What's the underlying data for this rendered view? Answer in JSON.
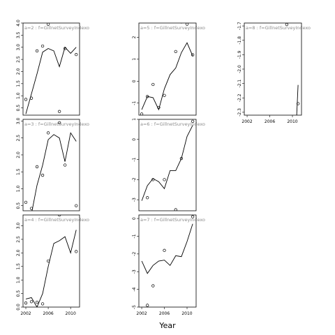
{
  "chart_data": {
    "type": "line",
    "xlabel": "Year",
    "panels": [
      {
        "label": "a=2  :  f=GillnetSurveyIndexo",
        "ylim": [
          0.2,
          4.0
        ],
        "yticks": [
          "0.5",
          "1.0",
          "1.5",
          "2.0",
          "2.5",
          "3.0",
          "3.5",
          "4.0"
        ],
        "xticks": [],
        "line": {
          "x": [
            2002,
            2004,
            2005,
            2006,
            2007,
            2008,
            2009,
            2010,
            2011
          ],
          "y": [
            0.25,
            1.9,
            2.8,
            2.95,
            2.85,
            2.2,
            3.0,
            2.75,
            3.0
          ]
        },
        "points": {
          "x": [
            2002,
            2003,
            2004,
            2005,
            2006,
            2008,
            2009,
            2011
          ],
          "y": [
            0.85,
            0.9,
            2.85,
            3.05,
            3.95,
            0.35,
            2.95,
            2.7
          ]
        }
      },
      {
        "label": "a=3  :  f=GillnetSurveyIndexo",
        "ylim": [
          0.35,
          3.05
        ],
        "yticks": [
          "0.5",
          "1.0",
          "1.5",
          "2.0",
          "2.5",
          "3.0"
        ],
        "xticks": [],
        "line": {
          "x": [
            2002,
            2003,
            2004,
            2005,
            2006,
            2007,
            2008,
            2009,
            2010,
            2011
          ],
          "y": [
            0.2,
            0.25,
            1.1,
            1.7,
            2.45,
            2.6,
            2.5,
            1.8,
            2.65,
            2.4
          ]
        },
        "points": {
          "x": [
            2002,
            2003,
            2004,
            2005,
            2006,
            2008,
            2009,
            2011
          ],
          "y": [
            0.6,
            0.42,
            1.65,
            1.4,
            2.65,
            2.95,
            1.7,
            0.5
          ]
        }
      },
      {
        "label": "a=4  :  f=GillnetSurveyIndexo",
        "ylim": [
          0.0,
          3.4
        ],
        "yticks": [
          "0.0",
          "0.5",
          "1.0",
          "1.5",
          "2.0",
          "2.5",
          "3.0"
        ],
        "xticks": [
          "2002",
          "2006",
          "2010"
        ],
        "line": {
          "x": [
            2002,
            2003,
            2004,
            2005,
            2006,
            2007,
            2008,
            2009,
            2010,
            2011
          ],
          "y": [
            0.3,
            0.35,
            0.0,
            0.5,
            1.5,
            2.35,
            2.45,
            2.6,
            2.0,
            2.85
          ]
        },
        "points": {
          "x": [
            2002,
            2003,
            2004,
            2005,
            2006,
            2008,
            2009,
            2011
          ],
          "y": [
            0.15,
            0.2,
            0.18,
            0.12,
            1.7,
            3.4,
            3.55,
            2.05
          ]
        }
      },
      {
        "label": "a=5  :  f=GillnetSurveyIndexo",
        "ylim": [
          -1.55,
          2.65
        ],
        "yticks": [
          "-1",
          "0",
          "1",
          "2"
        ],
        "xticks": [],
        "line": {
          "x": [
            2002,
            2003,
            2004,
            2005,
            2006,
            2007,
            2008,
            2009,
            2010,
            2011
          ],
          "y": [
            -1.3,
            -0.7,
            -0.75,
            -1.3,
            -0.35,
            0.3,
            0.6,
            1.3,
            1.75,
            1.15
          ]
        },
        "points": {
          "x": [
            2002,
            2003,
            2004,
            2005,
            2006,
            2008,
            2009,
            2010,
            2011
          ],
          "y": [
            -1.5,
            -0.7,
            -0.15,
            -1.2,
            -0.65,
            1.35,
            2.7,
            2.6,
            1.2
          ]
        }
      },
      {
        "label": "a=6  :  f=GillnetSurveyIndexo",
        "ylim": [
          -3.55,
          1.0
        ],
        "yticks": [
          "-3",
          "-2",
          "-1",
          "0",
          "1"
        ],
        "xticks": [],
        "line": {
          "x": [
            2002,
            2003,
            2004,
            2005,
            2006,
            2007,
            2008,
            2009,
            2010,
            2011
          ],
          "y": [
            -3.05,
            -2.3,
            -1.95,
            -2.1,
            -2.45,
            -1.55,
            -1.55,
            -0.95,
            0.15,
            0.7
          ]
        },
        "points": {
          "x": [
            2003,
            2004,
            2006,
            2008,
            2009,
            2011
          ],
          "y": [
            -2.9,
            -2.0,
            -2.0,
            -3.5,
            -0.95,
            0.9
          ]
        }
      },
      {
        "label": "a=7  :  f=GillnetSurveyIndexo",
        "ylim": [
          -5.0,
          0.2
        ],
        "yticks": [
          "-5",
          "-4",
          "-3",
          "-2",
          "-1",
          "0"
        ],
        "xticks": [
          "2002",
          "2006",
          "2010"
        ],
        "line": {
          "x": [
            2002,
            2003,
            2004,
            2005,
            2006,
            2007,
            2008,
            2009,
            2010,
            2011
          ],
          "y": [
            -2.4,
            -3.1,
            -2.65,
            -2.4,
            -2.35,
            -2.65,
            -2.1,
            -2.15,
            -1.3,
            -0.3
          ]
        },
        "points": {
          "x": [
            2003,
            2004,
            2006,
            2011
          ],
          "y": [
            -4.9,
            -3.8,
            -1.8,
            0.1
          ]
        }
      },
      {
        "label": "a=8  :  f=GillnetSurveyIndexo",
        "ylim": [
          -2.32,
          -1.68
        ],
        "yticks": [
          "-2.3",
          "-2.2",
          "-2.1",
          "-2.0",
          "-1.9",
          "-1.8",
          "-1.7"
        ],
        "xticks": [
          "2002",
          "2006",
          "2010"
        ],
        "line": {
          "x": [
            2010.6,
            2011
          ],
          "y": [
            -2.45,
            -2.11
          ]
        },
        "points": {
          "x": [
            2004,
            2009,
            2011
          ],
          "y": [
            -2.33,
            -1.69,
            -2.24
          ]
        }
      }
    ]
  }
}
